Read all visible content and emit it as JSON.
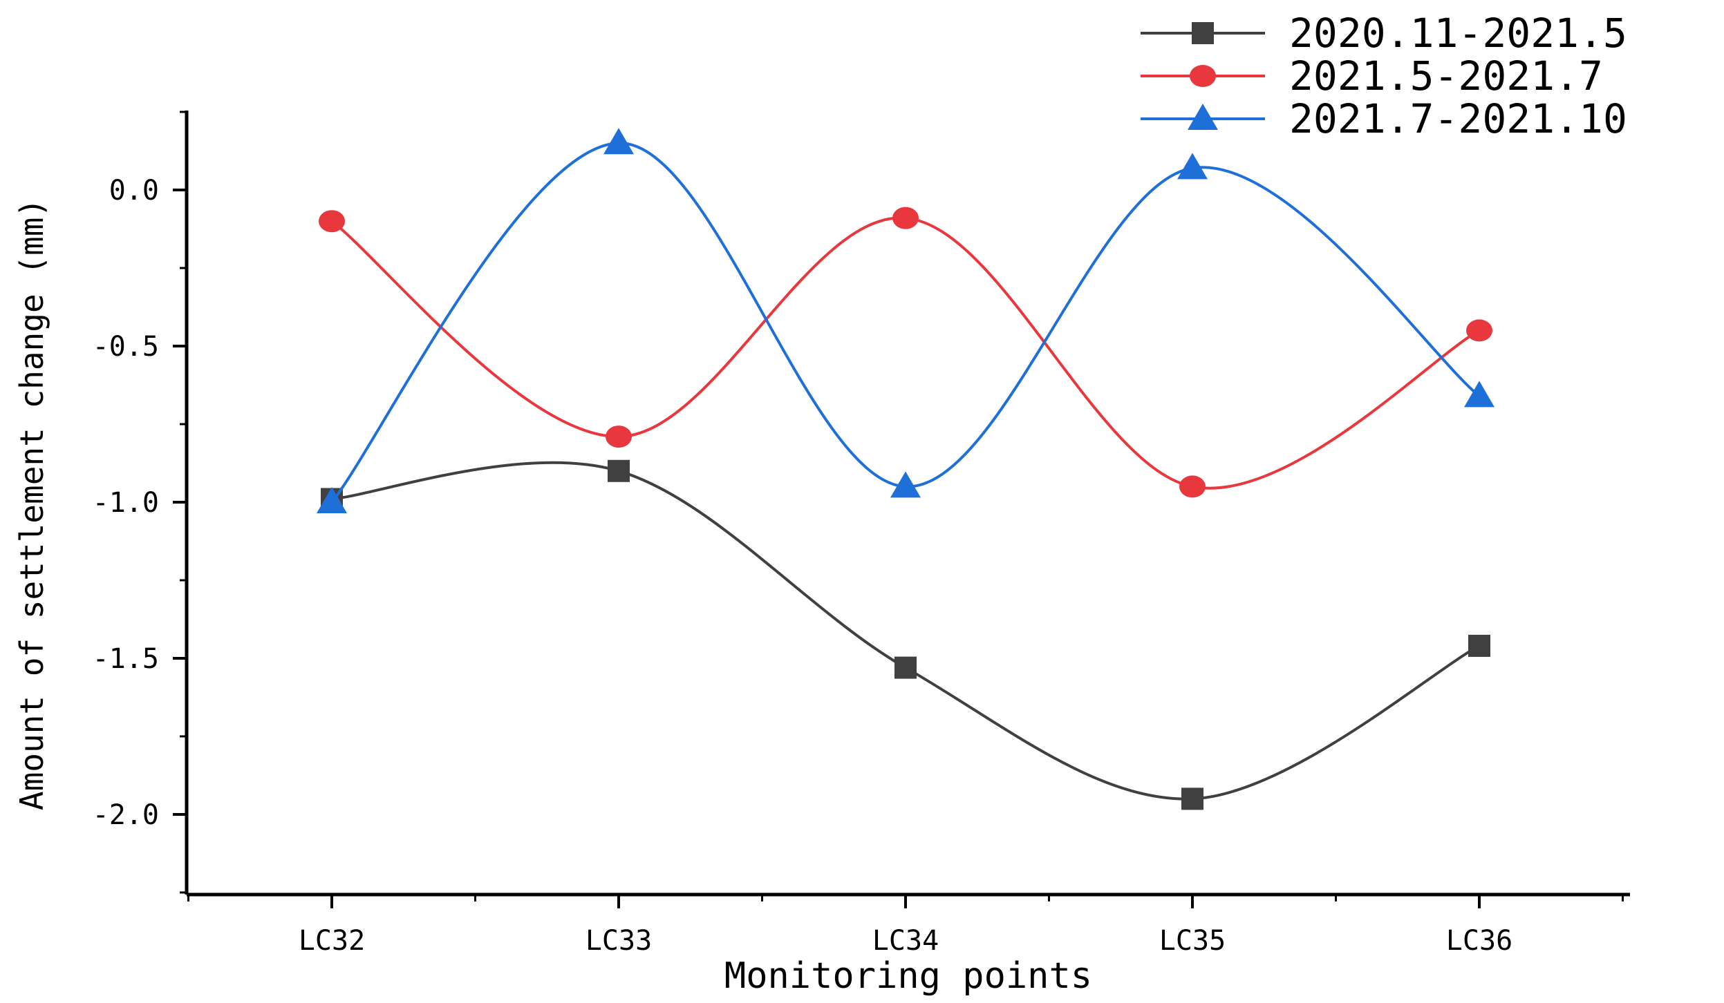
{
  "chart_data": {
    "type": "line",
    "title": "",
    "xlabel": "Monitoring points",
    "ylabel": "Amount of settlement change (mm)",
    "categories": [
      "LC32",
      "LC33",
      "LC34",
      "LC35",
      "LC36"
    ],
    "ylim": [
      -2.25,
      0.25
    ],
    "yticks": [
      0.0,
      -0.5,
      -1.0,
      -1.5,
      -2.0
    ],
    "ytick_labels": [
      "0.0",
      "-0.5",
      "-1.0",
      "-1.5",
      "-2.0"
    ],
    "smooth": true,
    "grid": false,
    "legend_position": "top-right",
    "series": [
      {
        "name": "2020.11-2021.5",
        "color": "#404040",
        "marker": "square",
        "values": [
          -0.99,
          -0.9,
          -1.53,
          -1.95,
          -1.46
        ]
      },
      {
        "name": "2021.5-2021.7",
        "color": "#e8383d",
        "marker": "circle",
        "values": [
          -0.1,
          -0.79,
          -0.09,
          -0.95,
          -0.45
        ]
      },
      {
        "name": "2021.7-2021.10",
        "color": "#1f6fd8",
        "marker": "triangle",
        "values": [
          -1.0,
          0.15,
          -0.95,
          0.07,
          -0.66
        ]
      }
    ]
  }
}
